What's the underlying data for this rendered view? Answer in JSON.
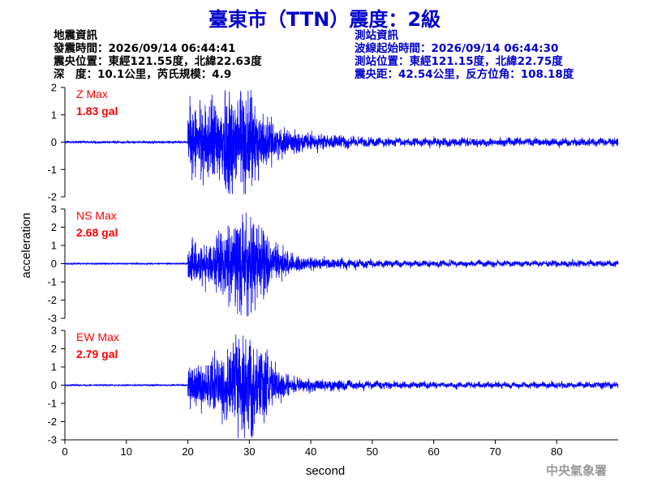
{
  "header": {
    "title": "臺東市（TTN）震度：2級"
  },
  "quake_info": {
    "heading": "地震資訊",
    "origin_time": "發震時間：2026/09/14 06:44:41",
    "epicenter": "震央位置：東經121.55度，北緯22.63度",
    "depth_magnitude": "深　度：10.1公里，芮氏規模：4.9"
  },
  "station_info": {
    "heading": "測站資訊",
    "wave_start": "波線起始時間：2026/09/14 06:44:30",
    "location": "測站位置：東經121.15度，北緯22.75度",
    "distance": "震央距：42.54公里，反方位角：108.18度"
  },
  "footer": {
    "agency": "中央氣象署"
  },
  "colors": {
    "trace": "#0000ff",
    "label": "#ff0000",
    "title": "#0000cc",
    "axis": "#000000"
  },
  "chart_data": {
    "type": "line",
    "xlabel": "second",
    "ylabel": "acceleration",
    "xlim": [
      0,
      90
    ],
    "xticks": [
      0,
      10,
      20,
      30,
      40,
      50,
      60,
      70,
      80
    ],
    "p_wave_onset_s": 20,
    "series": [
      {
        "name": "Z",
        "label_line1": "Z Max",
        "label_line2": "1.83 gal",
        "max_gal": 1.83,
        "ylim": [
          -2,
          2
        ],
        "yticks": [
          -2,
          -1,
          0,
          1,
          2
        ]
      },
      {
        "name": "NS",
        "label_line1": "NS Max",
        "label_line2": "2.68 gal",
        "max_gal": 2.68,
        "ylim": [
          -3,
          3
        ],
        "yticks": [
          -3,
          -2,
          -1,
          0,
          1,
          2,
          3
        ]
      },
      {
        "name": "EW",
        "label_line1": "EW Max",
        "label_line2": "2.79 gal",
        "max_gal": 2.79,
        "ylim": [
          -3,
          3
        ],
        "yticks": [
          -3,
          -2,
          -1,
          0,
          1,
          2,
          3
        ]
      }
    ]
  }
}
